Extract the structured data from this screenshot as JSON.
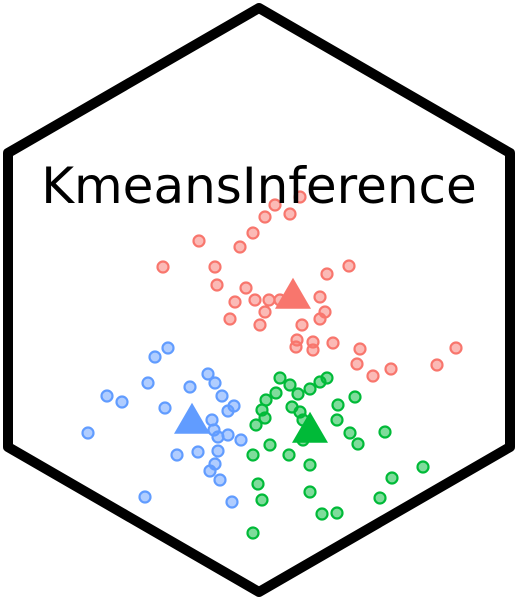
{
  "logo": {
    "title": "KmeansInference",
    "border_color": "#000000",
    "background_color": "#ffffff"
  },
  "chart_data": {
    "type": "scatter",
    "clusters": [
      {
        "color": "#f8766d",
        "centroid": [
          293,
          297
        ],
        "points": [
          [
            275,
            205
          ],
          [
            300,
            197
          ],
          [
            290,
            214
          ],
          [
            265,
            217
          ],
          [
            253,
            233
          ],
          [
            240,
            247
          ],
          [
            199,
            241
          ],
          [
            163,
            267
          ],
          [
            215,
            267
          ],
          [
            217,
            285
          ],
          [
            246,
            288
          ],
          [
            235,
            302
          ],
          [
            255,
            300
          ],
          [
            269,
            300
          ],
          [
            280,
            300
          ],
          [
            265,
            312
          ],
          [
            230,
            319
          ],
          [
            260,
            325
          ],
          [
            327,
            274
          ],
          [
            349,
            266
          ],
          [
            320,
            297
          ],
          [
            325,
            312
          ],
          [
            320,
            319
          ],
          [
            302,
            325
          ],
          [
            297,
            340
          ],
          [
            296,
            347
          ],
          [
            313,
            342
          ],
          [
            313,
            350
          ],
          [
            333,
            343
          ],
          [
            360,
            349
          ],
          [
            357,
            364
          ],
          [
            373,
            376
          ],
          [
            391,
            369
          ],
          [
            437,
            365
          ],
          [
            456,
            348
          ]
        ]
      },
      {
        "color": "#619cff",
        "centroid": [
          192,
          422
        ],
        "points": [
          [
            168,
            348
          ],
          [
            155,
            357
          ],
          [
            148,
            383
          ],
          [
            107,
            396
          ],
          [
            122,
            402
          ],
          [
            88,
            433
          ],
          [
            165,
            408
          ],
          [
            190,
            387
          ],
          [
            208,
            374
          ],
          [
            215,
            383
          ],
          [
            222,
            396
          ],
          [
            234,
            406
          ],
          [
            228,
            411
          ],
          [
            212,
            420
          ],
          [
            214,
            430
          ],
          [
            218,
            437
          ],
          [
            228,
            435
          ],
          [
            241,
            440
          ],
          [
            198,
            452
          ],
          [
            177,
            455
          ],
          [
            218,
            451
          ],
          [
            215,
            464
          ],
          [
            210,
            471
          ],
          [
            220,
            480
          ],
          [
            232,
            502
          ],
          [
            145,
            497
          ]
        ]
      },
      {
        "color": "#00ba38",
        "centroid": [
          310,
          431
        ],
        "points": [
          [
            280,
            378
          ],
          [
            290,
            385
          ],
          [
            298,
            394
          ],
          [
            292,
            407
          ],
          [
            300,
            412
          ],
          [
            303,
            420
          ],
          [
            276,
            393
          ],
          [
            266,
            400
          ],
          [
            262,
            410
          ],
          [
            256,
            425
          ],
          [
            265,
            418
          ],
          [
            310,
            389
          ],
          [
            320,
            382
          ],
          [
            327,
            378
          ],
          [
            355,
            397
          ],
          [
            338,
            405
          ],
          [
            337,
            420
          ],
          [
            350,
            433
          ],
          [
            358,
            444
          ],
          [
            385,
            432
          ],
          [
            303,
            440
          ],
          [
            289,
            455
          ],
          [
            310,
            465
          ],
          [
            270,
            445
          ],
          [
            253,
            455
          ],
          [
            258,
            484
          ],
          [
            262,
            500
          ],
          [
            253,
            533
          ],
          [
            310,
            492
          ],
          [
            322,
            514
          ],
          [
            337,
            513
          ],
          [
            380,
            498
          ],
          [
            392,
            478
          ],
          [
            423,
            467
          ]
        ]
      }
    ]
  }
}
